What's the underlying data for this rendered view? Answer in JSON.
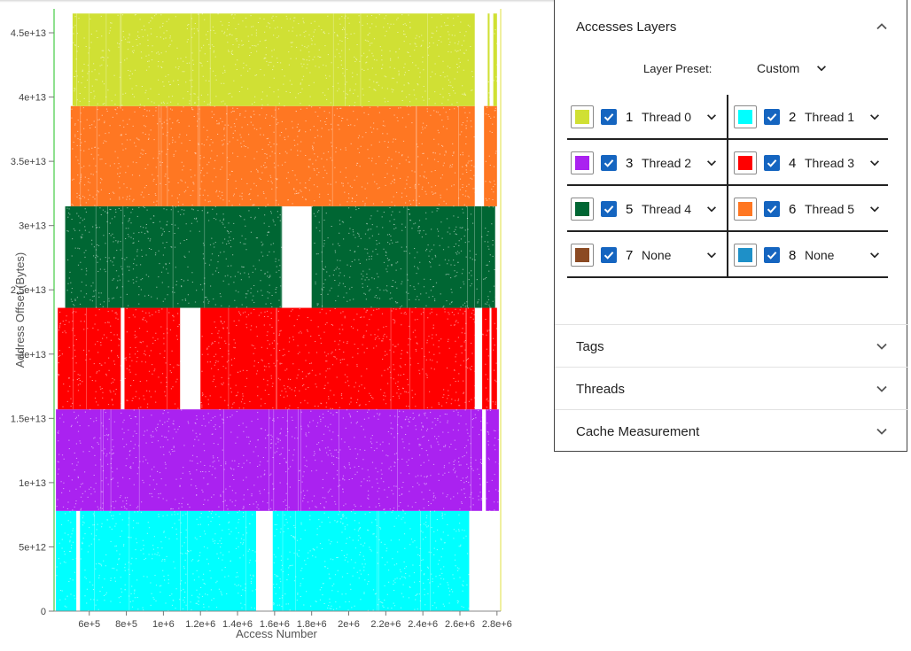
{
  "chart_data": {
    "type": "scatter",
    "title": "",
    "xlabel": "Access Number",
    "ylabel": "Address Offset (Bytes)",
    "xlim": [
      410000,
      2820000
    ],
    "ylim": [
      0,
      47000000000000
    ],
    "xticks": [
      600000,
      800000,
      1000000,
      1200000,
      1400000,
      1600000,
      1800000,
      2000000,
      2200000,
      2400000,
      2600000,
      2800000
    ],
    "xtick_labels": [
      "6e+5",
      "8e+5",
      "1e+6",
      "1.2e+6",
      "1.4e+6",
      "1.6e+6",
      "1.8e+6",
      "2e+6",
      "2.2e+6",
      "2.4e+6",
      "2.6e+6",
      "2.8e+6"
    ],
    "yticks": [
      0,
      5000000000000,
      10000000000000,
      15000000000000,
      20000000000000,
      25000000000000,
      30000000000000,
      35000000000000,
      40000000000000,
      45000000000000
    ],
    "ytick_labels": [
      "0",
      "5e+12",
      "1e+13",
      "1.5e+13",
      "2e+13",
      "2.5e+13",
      "3e+13",
      "3.5e+13",
      "4e+13",
      "4.5e+13"
    ],
    "series": [
      {
        "name": "Thread 1",
        "color": "#00ffff",
        "y_range": [
          0,
          7800000000000
        ],
        "x_segments": [
          [
            420000,
            530000
          ],
          [
            550000,
            1500000
          ],
          [
            1590000,
            2650000
          ]
        ]
      },
      {
        "name": "Thread 2",
        "color": "#aa22f0",
        "y_range": [
          7800000000000,
          15700000000000
        ],
        "x_segments": [
          [
            420000,
            2720000
          ],
          [
            2740000,
            2810000
          ]
        ]
      },
      {
        "name": "Thread 3",
        "color": "#ff0000",
        "y_range": [
          15700000000000,
          23600000000000
        ],
        "x_segments": [
          [
            430000,
            770000
          ],
          [
            790000,
            1090000
          ],
          [
            1200000,
            2680000
          ],
          [
            2720000,
            2760000
          ],
          [
            2770000,
            2800000
          ]
        ]
      },
      {
        "name": "Thread 4",
        "color": "#006633",
        "y_range": [
          23600000000000,
          31500000000000
        ],
        "x_segments": [
          [
            470000,
            1640000
          ],
          [
            1800000,
            2790000
          ]
        ]
      },
      {
        "name": "Thread 5",
        "color": "#ff7722",
        "y_range": [
          31500000000000,
          39300000000000
        ],
        "x_segments": [
          [
            500000,
            2680000
          ],
          [
            2730000,
            2800000
          ]
        ]
      },
      {
        "name": "Thread 0",
        "color": "#d0e034",
        "y_range": [
          39300000000000,
          46500000000000
        ],
        "x_segments": [
          [
            510000,
            2680000
          ],
          [
            2750000,
            2760000
          ],
          [
            2780000,
            2800000
          ]
        ]
      }
    ]
  },
  "panel": {
    "sections": [
      {
        "title": "Accesses Layers",
        "expanded": true
      },
      {
        "title": "Tags",
        "expanded": false
      },
      {
        "title": "Threads",
        "expanded": false
      },
      {
        "title": "Cache Measurement",
        "expanded": false
      }
    ],
    "preset": {
      "label": "Layer Preset:",
      "value": "Custom"
    },
    "layers": [
      {
        "num": "1",
        "color": "#d0e034",
        "thread": "Thread 0",
        "checked": true
      },
      {
        "num": "2",
        "color": "#00ffff",
        "thread": "Thread 1",
        "checked": true
      },
      {
        "num": "3",
        "color": "#aa22f0",
        "thread": "Thread 2",
        "checked": true
      },
      {
        "num": "4",
        "color": "#ff0000",
        "thread": "Thread 3",
        "checked": true
      },
      {
        "num": "5",
        "color": "#006633",
        "thread": "Thread 4",
        "checked": true
      },
      {
        "num": "6",
        "color": "#ff7722",
        "thread": "Thread 5",
        "checked": true
      },
      {
        "num": "7",
        "color": "#8b4a23",
        "thread": "None",
        "checked": true
      },
      {
        "num": "8",
        "color": "#1e90c8",
        "thread": "None",
        "checked": true
      }
    ]
  }
}
